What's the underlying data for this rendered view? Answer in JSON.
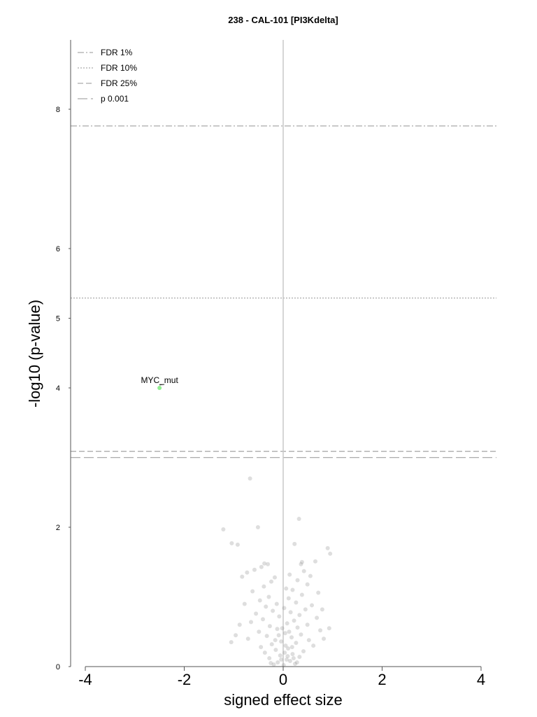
{
  "chart_data": {
    "type": "scatter",
    "title": "238 - CAL-101 [PI3Kdelta]",
    "xlabel": "signed effect size",
    "ylabel": "-log10 (p-value)",
    "xlim": [
      -4.3,
      4.3
    ],
    "ylim": [
      0,
      9
    ],
    "xticks": [
      -4,
      -2,
      0,
      2,
      4
    ],
    "yticks": [
      0,
      2,
      4,
      5,
      6,
      8
    ],
    "grid": false,
    "legend_position": "top-left",
    "threshold_lines": [
      {
        "name": "FDR 1%",
        "y": 7.76,
        "style": "dashdot",
        "color": "#aaaaaa"
      },
      {
        "name": "FDR 10%",
        "y": 5.29,
        "style": "dotted",
        "color": "#aaaaaa"
      },
      {
        "name": "FDR 25%",
        "y": 3.09,
        "style": "dashed",
        "color": "#aaaaaa"
      },
      {
        "name": "p 0.001",
        "y": 3.0,
        "style": "longdash",
        "color": "#aaaaaa"
      }
    ],
    "vertical_line": {
      "x": 0,
      "color": "#c8c8c8"
    },
    "highlight": [
      {
        "label": "MYC_mut",
        "x": -2.5,
        "y": 4.0,
        "color": "#90ee90"
      }
    ],
    "series": [
      {
        "color": "#888888",
        "points": [
          [
            -0.67,
            2.7
          ],
          [
            0.32,
            2.12
          ],
          [
            -0.51,
            2.0
          ],
          [
            -1.21,
            1.97
          ],
          [
            -1.04,
            1.77
          ],
          [
            -0.92,
            1.75
          ],
          [
            0.23,
            1.76
          ],
          [
            0.9,
            1.7
          ],
          [
            0.95,
            1.62
          ],
          [
            0.65,
            1.51
          ],
          [
            0.38,
            1.5
          ],
          [
            0.36,
            1.47
          ],
          [
            -0.38,
            1.48
          ],
          [
            -0.31,
            1.47
          ],
          [
            -0.44,
            1.43
          ],
          [
            -0.58,
            1.39
          ],
          [
            0.42,
            1.37
          ],
          [
            -0.73,
            1.35
          ],
          [
            0.13,
            1.32
          ],
          [
            0.55,
            1.3
          ],
          [
            -0.83,
            1.29
          ],
          [
            -0.17,
            1.28
          ],
          [
            0.29,
            1.24
          ],
          [
            -0.24,
            1.22
          ],
          [
            0.49,
            1.18
          ],
          [
            -0.39,
            1.15
          ],
          [
            0.06,
            1.12
          ],
          [
            0.19,
            1.1
          ],
          [
            -0.62,
            1.08
          ],
          [
            0.71,
            1.06
          ],
          [
            0.38,
            1.03
          ],
          [
            -0.29,
            1.0
          ],
          [
            0.11,
            0.98
          ],
          [
            -0.47,
            0.95
          ],
          [
            0.26,
            0.92
          ],
          [
            -0.13,
            0.9
          ],
          [
            0.58,
            0.88
          ],
          [
            -0.35,
            0.86
          ],
          [
            0.02,
            0.84
          ],
          [
            0.45,
            0.82
          ],
          [
            -0.21,
            0.8
          ],
          [
            0.15,
            0.78
          ],
          [
            -0.55,
            0.76
          ],
          [
            0.33,
            0.74
          ],
          [
            -0.08,
            0.72
          ],
          [
            0.68,
            0.7
          ],
          [
            -0.41,
            0.68
          ],
          [
            0.22,
            0.66
          ],
          [
            -0.65,
            0.64
          ],
          [
            0.08,
            0.62
          ],
          [
            0.49,
            0.6
          ],
          [
            -0.27,
            0.58
          ],
          [
            0.29,
            0.56
          ],
          [
            -0.12,
            0.54
          ],
          [
            0.75,
            0.52
          ],
          [
            -0.49,
            0.5
          ],
          [
            0.04,
            0.48
          ],
          [
            0.36,
            0.46
          ],
          [
            -0.33,
            0.44
          ],
          [
            0.17,
            0.42
          ],
          [
            -0.71,
            0.4
          ],
          [
            0.52,
            0.38
          ],
          [
            -0.04,
            0.36
          ],
          [
            0.26,
            0.34
          ],
          [
            -0.23,
            0.32
          ],
          [
            0.61,
            0.3
          ],
          [
            -0.45,
            0.28
          ],
          [
            0.1,
            0.26
          ],
          [
            -0.15,
            0.24
          ],
          [
            0.41,
            0.22
          ],
          [
            -0.37,
            0.2
          ],
          [
            0.19,
            0.18
          ],
          [
            -0.06,
            0.16
          ],
          [
            0.33,
            0.14
          ],
          [
            -0.28,
            0.12
          ],
          [
            0.07,
            0.1
          ],
          [
            0.14,
            0.08
          ],
          [
            -0.11,
            0.06
          ],
          [
            0.24,
            0.04
          ],
          [
            -0.19,
            0.03
          ],
          [
            0.01,
            0.02
          ],
          [
            -1.05,
            0.35
          ],
          [
            -0.88,
            0.6
          ],
          [
            -0.96,
            0.45
          ],
          [
            0.82,
            0.4
          ],
          [
            0.93,
            0.55
          ],
          [
            -0.78,
            0.9
          ],
          [
            0.79,
            0.82
          ],
          [
            -0.02,
            0.55
          ],
          [
            0.05,
            0.3
          ],
          [
            -0.09,
            0.45
          ],
          [
            0.12,
            0.5
          ],
          [
            0.03,
            0.2
          ],
          [
            -0.04,
            0.1
          ],
          [
            0.09,
            0.15
          ],
          [
            0.18,
            0.28
          ],
          [
            -0.16,
            0.38
          ],
          [
            0.21,
            0.12
          ],
          [
            -0.25,
            0.05
          ],
          [
            0.28,
            0.06
          ]
        ]
      }
    ]
  }
}
